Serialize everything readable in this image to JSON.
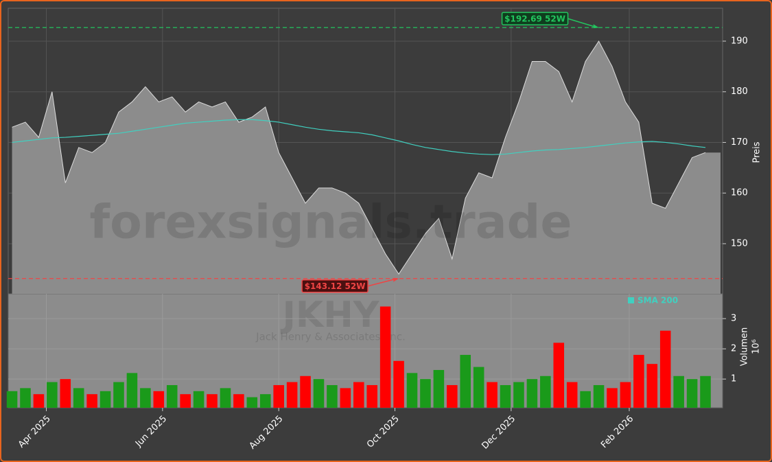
{
  "chart_data": [
    {
      "type": "area",
      "x": [
        "2025-03-14",
        "2025-03-21",
        "2025-03-28",
        "2025-04-04",
        "2025-04-11",
        "2025-04-18",
        "2025-04-25",
        "2025-05-02",
        "2025-05-09",
        "2025-05-16",
        "2025-05-23",
        "2025-05-30",
        "2025-06-06",
        "2025-06-13",
        "2025-06-20",
        "2025-06-27",
        "2025-07-04",
        "2025-07-11",
        "2025-07-18",
        "2025-07-25",
        "2025-08-01",
        "2025-08-08",
        "2025-08-15",
        "2025-08-22",
        "2025-08-29",
        "2025-09-05",
        "2025-09-12",
        "2025-09-19",
        "2025-09-26",
        "2025-10-03",
        "2025-10-10",
        "2025-10-17",
        "2025-10-24",
        "2025-10-31",
        "2025-11-07",
        "2025-11-14",
        "2025-11-21",
        "2025-11-28",
        "2025-12-05",
        "2025-12-12",
        "2025-12-19",
        "2025-12-26",
        "2026-01-02",
        "2026-01-09",
        "2026-01-16",
        "2026-01-23",
        "2026-01-30",
        "2026-02-06",
        "2026-02-13",
        "2026-02-20",
        "2026-02-27",
        "2026-03-06",
        "2026-03-13"
      ],
      "values": [
        173,
        174,
        171,
        180,
        162,
        169,
        168,
        170,
        176,
        178,
        181,
        178,
        179,
        176,
        178,
        177,
        178,
        174,
        175,
        177,
        168,
        163,
        158,
        161,
        161,
        160,
        158,
        153,
        148,
        144,
        148,
        152,
        155,
        147,
        159,
        164,
        163,
        171,
        178,
        186,
        186,
        184,
        178,
        186,
        190,
        185,
        178,
        174,
        158,
        157,
        162,
        167,
        168
      ],
      "color": "#8c8c8c",
      "line_color": "#dddddd",
      "overlays": [
        {
          "name": "SMA 200",
          "color": "#40d0c0",
          "values": [
            170,
            170.3,
            170.6,
            170.9,
            171,
            171.2,
            171.4,
            171.6,
            171.8,
            172.2,
            172.6,
            173,
            173.4,
            173.8,
            174,
            174.2,
            174.4,
            174.5,
            174.5,
            174.3,
            174,
            173.5,
            173,
            172.6,
            172.3,
            172.1,
            171.9,
            171.5,
            170.9,
            170.3,
            169.6,
            169,
            168.6,
            168.2,
            167.9,
            167.7,
            167.6,
            167.7,
            168,
            168.3,
            168.5,
            168.6,
            168.8,
            169,
            169.3,
            169.6,
            169.9,
            170.1,
            170.2,
            170,
            169.7,
            169.3,
            169
          ]
        }
      ],
      "annotations": [
        {
          "text": "$192.69 52W",
          "value": 192.69,
          "x": "2026-01-16",
          "color": "#22c55e",
          "box": "#0f3d1e"
        },
        {
          "text": "$143.12 52W",
          "value": 143.12,
          "x": "2025-10-03",
          "color": "#ef4444",
          "box": "#4a1010"
        }
      ],
      "watermark": "forexsignals.trade",
      "symbol": "JKHY",
      "company": "Jack Henry & Associates, Inc.",
      "ylabel": "Preis",
      "xlim": [
        "2025-03-12",
        "2026-03-22"
      ],
      "xticks": [
        {
          "value": "2025-04-01",
          "label": "Apr 2025"
        },
        {
          "value": "2025-06-01",
          "label": "Jun 2025"
        },
        {
          "value": "2025-08-01",
          "label": "Aug 2025"
        },
        {
          "value": "2025-10-01",
          "label": "Oct 2025"
        },
        {
          "value": "2025-12-01",
          "label": "Dec 2025"
        },
        {
          "value": "2026-02-01",
          "label": "Feb 2026"
        }
      ],
      "ylim": [
        140.1,
        196.5
      ],
      "yticks": [
        150,
        160,
        170,
        180,
        190
      ],
      "grid": true
    },
    {
      "type": "bar",
      "values": [
        0.6,
        0.7,
        0.5,
        0.9,
        1.0,
        0.7,
        0.5,
        0.6,
        0.9,
        1.2,
        0.7,
        0.6,
        0.8,
        0.5,
        0.6,
        0.5,
        0.7,
        0.5,
        0.4,
        0.5,
        0.8,
        0.9,
        1.1,
        1.0,
        0.8,
        0.7,
        0.9,
        0.8,
        3.4,
        1.6,
        1.2,
        1.0,
        1.3,
        0.8,
        1.8,
        1.4,
        0.9,
        0.8,
        0.9,
        1.0,
        1.1,
        2.2,
        0.9,
        0.6,
        0.8,
        0.7,
        0.9,
        1.8,
        1.5,
        2.6,
        1.1,
        1.0,
        1.1
      ],
      "up_color": "#1a9a1a",
      "down_color": "#ff0000",
      "ylabel": "Volumen",
      "unit": "10⁶",
      "ylim": [
        0.05,
        3.82
      ],
      "yticks": [
        1,
        2,
        3
      ],
      "grid": true
    }
  ]
}
